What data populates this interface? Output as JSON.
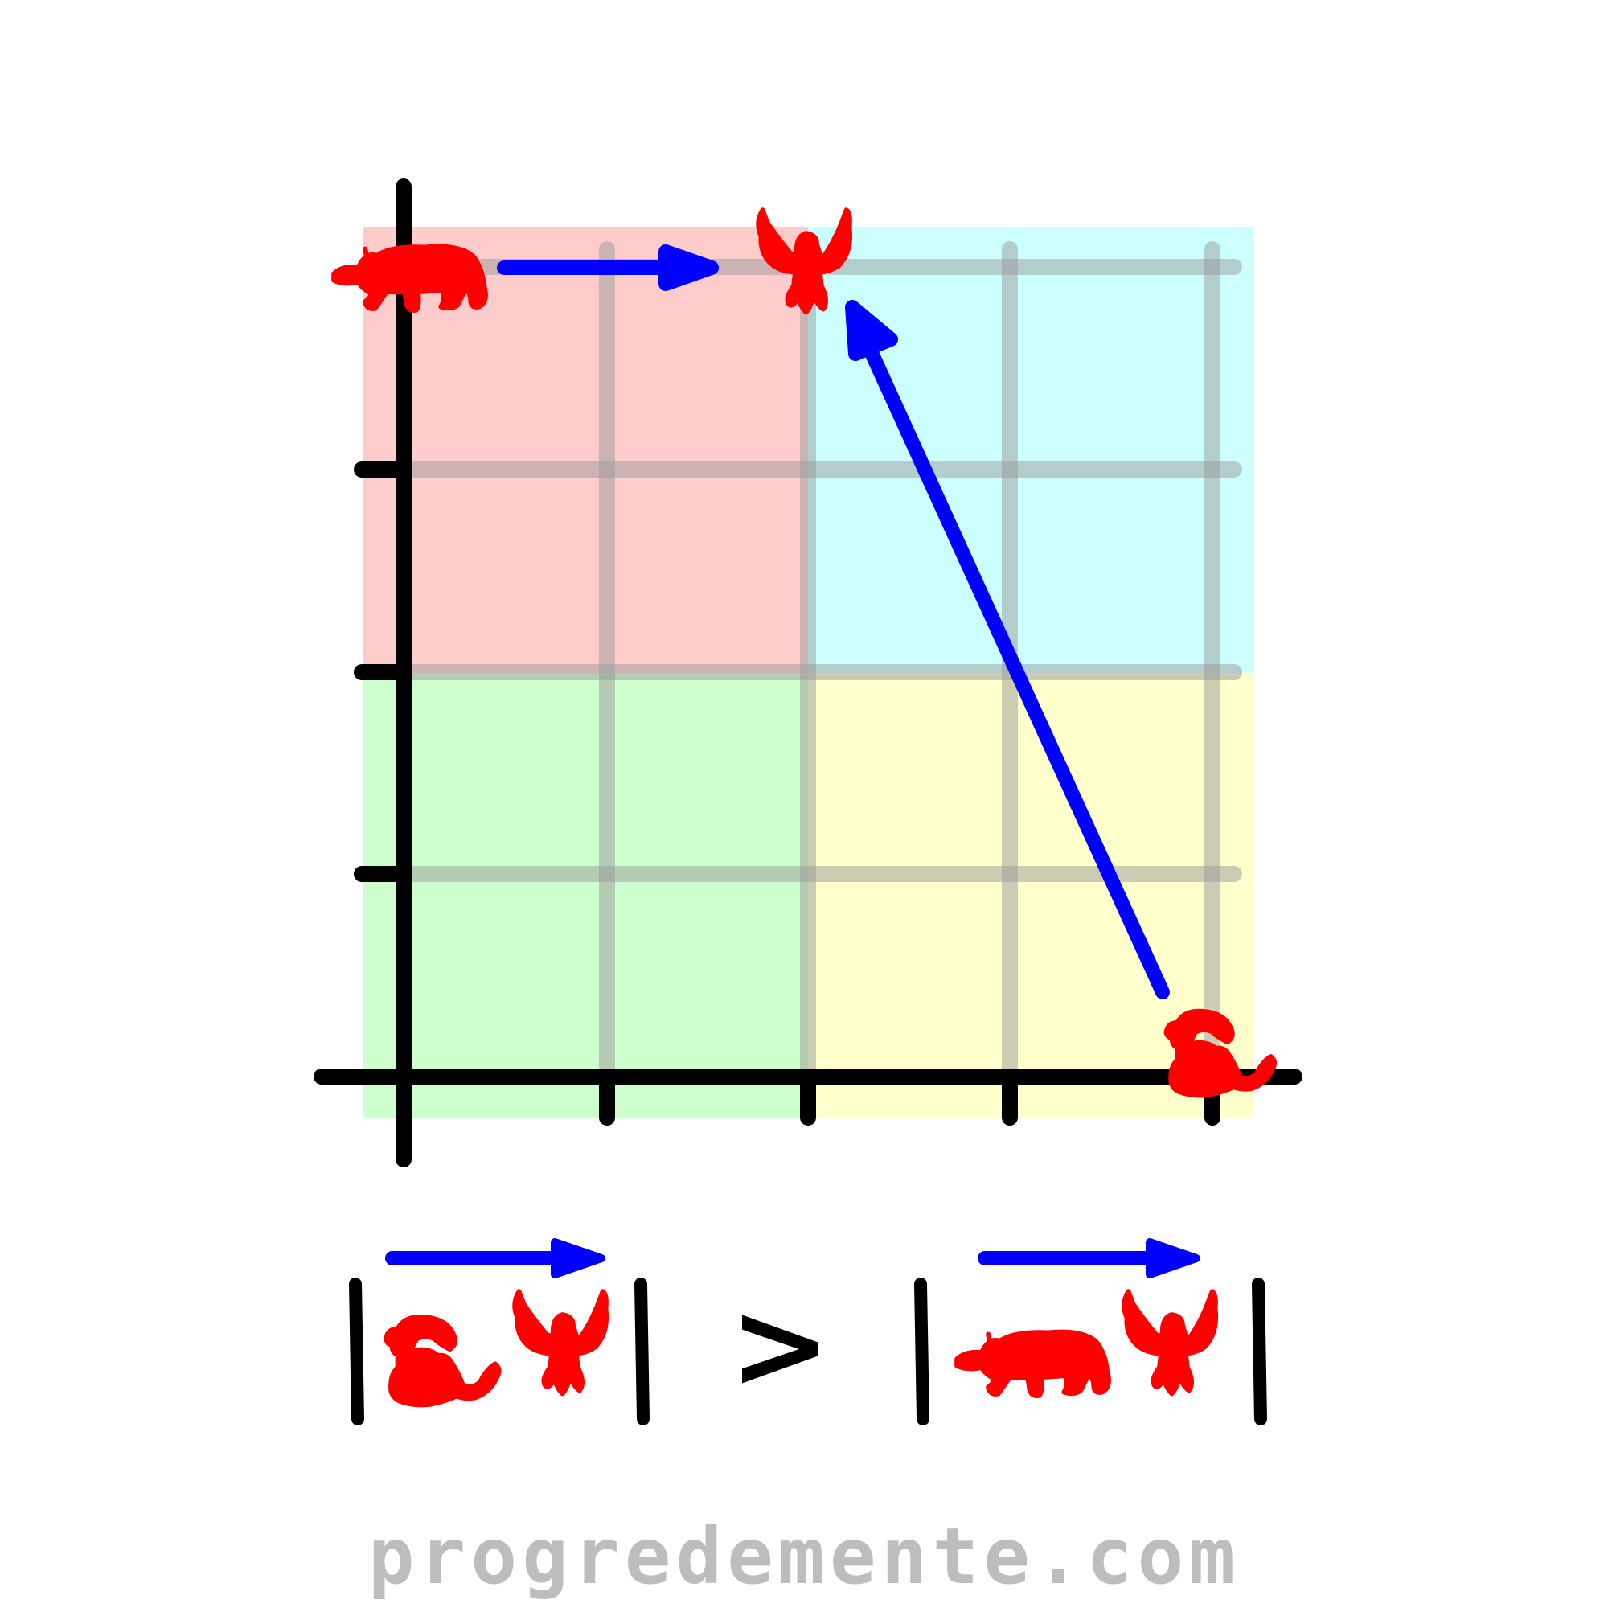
{
  "colors": {
    "background": "#ffffff",
    "quadrant_top_left": "#ffcccc",
    "quadrant_top_right": "#ccffff",
    "quadrant_bottom_left": "#ccffcc",
    "quadrant_bottom_right": "#ffffcc",
    "grid_line": "#999999",
    "axis": "#000000",
    "arrow": "#0000ff",
    "animal": "#ff0000",
    "watermark": "#bdbdbd"
  },
  "icons": {
    "bear": "bear-icon",
    "eagle": "eagle-icon",
    "snail": "snail-icon"
  },
  "comparison": {
    "operator": ">"
  },
  "watermark": "progredemente.com"
}
